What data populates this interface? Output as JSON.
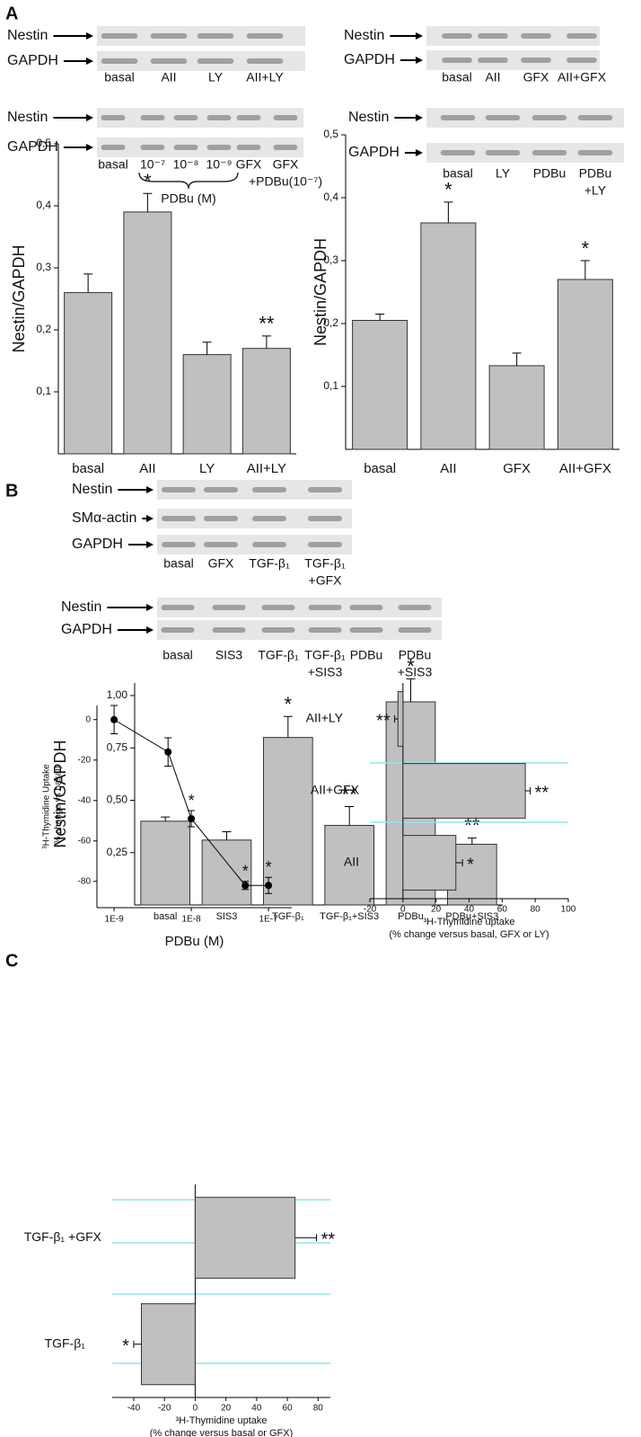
{
  "panel_labels": [
    "A",
    "B",
    "C"
  ],
  "blots": [
    {
      "rows": [
        "Nestin",
        "GAPDH"
      ],
      "lanes": [
        "basal",
        "AII",
        "LY",
        "AII+LY"
      ]
    },
    {
      "rows": [
        "Nestin",
        "GAPDH"
      ],
      "lanes": [
        "basal",
        "AII",
        "GFX",
        "AII+GFX"
      ]
    },
    {
      "rows": [
        "Nestin",
        "GAPDH"
      ],
      "lanes": [
        "basal",
        "10⁻⁷",
        "10⁻⁸",
        "10⁻⁹",
        "GFX",
        [
          "GFX",
          "+PDBu(10⁻⁷)"
        ]
      ],
      "group_label": "PDBu (M)"
    },
    {
      "rows": [
        "Nestin",
        "GAPDH"
      ],
      "lanes": [
        "basal",
        "LY",
        "PDBu",
        [
          "PDBu",
          "+LY"
        ]
      ]
    },
    {
      "rows": [
        "Nestin",
        "SMα-actin",
        "GAPDH"
      ],
      "lanes": [
        "basal",
        "GFX",
        "TGF-β₁",
        [
          "TGF-β₁",
          "+GFX"
        ]
      ]
    },
    {
      "rows": [
        "Nestin",
        "GAPDH"
      ],
      "lanes": [
        "basal",
        "SIS3",
        "TGF-β₁",
        [
          "TGF-β₁",
          "+SIS3"
        ],
        "PDBu",
        [
          "PDBu",
          "+SIS3"
        ]
      ]
    }
  ],
  "chart_data": [
    {
      "type": "bar",
      "ylabel": "Nestin/GAPDH",
      "categories": [
        "basal",
        "AII",
        "LY",
        "AII+LY"
      ],
      "values": [
        0.26,
        0.39,
        0.16,
        0.17
      ],
      "errors": [
        0.03,
        0.03,
        0.02,
        0.02
      ],
      "significance": [
        null,
        "*",
        null,
        "**"
      ],
      "color": "#c0c0c0",
      "ylim": [
        0,
        0.5
      ],
      "yticks": [
        {
          "value": 0.1,
          "label": "0,1"
        },
        {
          "value": 0.2,
          "label": "0,2"
        },
        {
          "value": 0.3,
          "label": "0,3"
        },
        {
          "value": 0.4,
          "label": "0,4"
        },
        {
          "value": 0.5,
          "label": "0,5"
        }
      ]
    },
    {
      "type": "bar",
      "ylabel": "Nestin/GAPDH",
      "categories": [
        "basal",
        "AII",
        "GFX",
        "AII+GFX"
      ],
      "values": [
        0.205,
        0.36,
        0.133,
        0.27
      ],
      "errors": [
        0.01,
        0.033,
        0.02,
        0.03
      ],
      "significance": [
        null,
        "*",
        null,
        "*"
      ],
      "color": "#c0c0c0",
      "ylim": [
        0,
        0.5
      ],
      "yticks": [
        {
          "value": 0.1,
          "label": "0,1"
        },
        {
          "value": 0.2,
          "label": "0,2"
        },
        {
          "value": 0.3,
          "label": "0,3"
        },
        {
          "value": 0.4,
          "label": "0,4"
        },
        {
          "value": 0.5,
          "label": "0,5"
        }
      ]
    },
    {
      "type": "bar",
      "ylabel": "Nestin/GAPDH",
      "categories": [
        "basal",
        "SIS3",
        "TGF-β₁",
        "TGF-β₁+SIS3",
        "PDBu",
        "PDBu+SIS3"
      ],
      "values": [
        0.4,
        0.31,
        0.8,
        0.38,
        0.97,
        0.29
      ],
      "errors": [
        0.02,
        0.04,
        0.1,
        0.09,
        0.11,
        0.03
      ],
      "significance": [
        null,
        null,
        "*",
        "**",
        "*",
        "**"
      ],
      "color": "#c0c0c0",
      "ylim": [
        0,
        1.06
      ],
      "yticks": [
        {
          "value": 0.25,
          "label": "0,25"
        },
        {
          "value": 0.5,
          "label": "0,50"
        },
        {
          "value": 0.75,
          "label": "0,75"
        },
        {
          "value": 1,
          "label": "1,00"
        }
      ]
    },
    {
      "type": "line",
      "xlabel": "PDBu (M)",
      "ylabel": [
        "³H-Thymidine Uptake",
        "(% change vs basal)"
      ],
      "x": [
        1e-09,
        5e-09,
        1e-08,
        5e-08,
        1e-07
      ],
      "values": [
        0,
        -16,
        -49,
        -82,
        -82
      ],
      "errors": [
        7,
        7,
        4,
        2,
        4
      ],
      "significance": [
        null,
        null,
        "*",
        "*",
        "*"
      ],
      "color": "#000000",
      "log_x": true,
      "xlim": [
        6e-10,
        2e-07
      ],
      "xticks": [
        {
          "value": 1e-09,
          "label": "1E-9"
        },
        {
          "value": 1e-08,
          "label": "1E-8"
        },
        {
          "value": 1e-07,
          "label": "1E-7"
        }
      ],
      "ylim": [
        -93,
        7
      ],
      "yticks": [
        0,
        -20,
        -40,
        -60,
        -80
      ]
    },
    {
      "type": "barh",
      "xlabel": [
        "³H-Thymidine uptake",
        "(% change versus basal, GFX or LY)"
      ],
      "categories": [
        "AII+LY",
        "AII+GFX",
        "AII"
      ],
      "values": [
        -3,
        74,
        32
      ],
      "errors": [
        2,
        3,
        4
      ],
      "significance": [
        "**",
        "**",
        "*"
      ],
      "color": "#c0c0c0",
      "xlim": [
        -20,
        100
      ],
      "xticks": [
        -20,
        0,
        20,
        40,
        60,
        80,
        100
      ]
    },
    {
      "type": "barh",
      "xlabel": [
        "³H-Thymidine uptake",
        "(% change versus basal or GFX)"
      ],
      "categories": [
        "TGF-β₁ +GFX",
        "TGF-β₁"
      ],
      "values": [
        65,
        -35
      ],
      "errors": [
        14,
        5
      ],
      "significance": [
        "**",
        "*"
      ],
      "color": "#c0c0c0",
      "xlim": [
        -54,
        88
      ],
      "xticks": [
        -40,
        -20,
        0,
        20,
        40,
        60,
        80
      ]
    }
  ]
}
